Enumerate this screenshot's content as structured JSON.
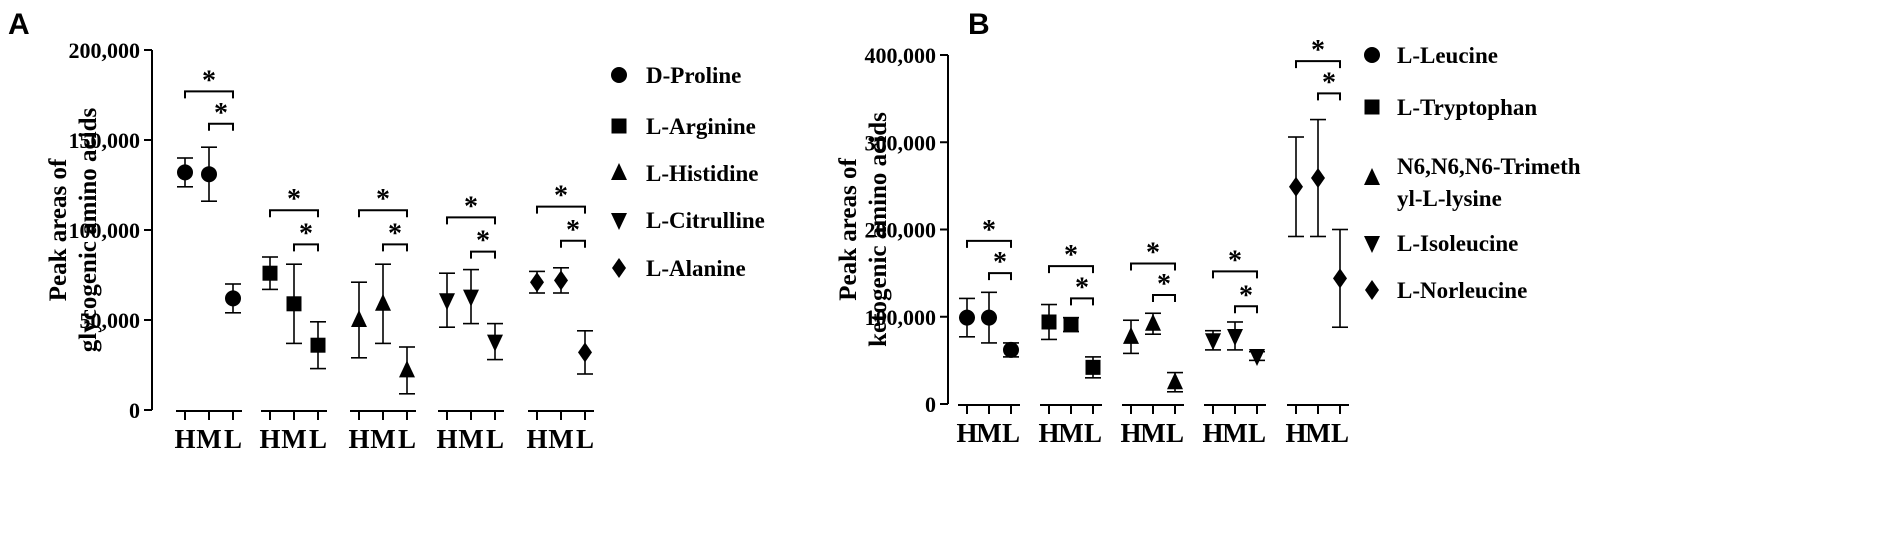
{
  "chart_data": [
    {
      "panel": "A",
      "type": "scatter",
      "ylabel": [
        "Peak areas of",
        "glycogenic amino acids"
      ],
      "yticks": [
        "0",
        "50,000",
        "100,000",
        "150,000",
        "200,000"
      ],
      "ylim": [
        0,
        200000
      ],
      "group_labels": [
        "H",
        "M",
        "L"
      ],
      "series": [
        {
          "name": "D-Proline",
          "marker": "circle",
          "mean": [
            132000,
            131000,
            62000
          ],
          "err": [
            8000,
            15000,
            8000
          ]
        },
        {
          "name": "L-Arginine",
          "marker": "square",
          "mean": [
            76000,
            59000,
            36000
          ],
          "err": [
            9000,
            22000,
            13000
          ]
        },
        {
          "name": "L-Histidine",
          "marker": "triangle",
          "mean": [
            50000,
            59000,
            22000
          ],
          "err": [
            21000,
            22000,
            13000
          ]
        },
        {
          "name": "L-Citrulline",
          "marker": "triangle-down",
          "mean": [
            61000,
            63000,
            38000
          ],
          "err": [
            15000,
            15000,
            10000
          ]
        },
        {
          "name": "L-Alanine",
          "marker": "diamond",
          "mean": [
            71000,
            72000,
            32000
          ],
          "err": [
            6000,
            7000,
            12000
          ]
        }
      ],
      "significance": [
        {
          "outer_y": 177000,
          "inner_y": 159000
        },
        {
          "outer_y": 111000,
          "inner_y": 92000
        },
        {
          "outer_y": 111000,
          "inner_y": 92000
        },
        {
          "outer_y": 107000,
          "inner_y": 88000
        },
        {
          "outer_y": 113000,
          "inner_y": 94000
        }
      ],
      "sig_label": "*"
    },
    {
      "panel": "B",
      "type": "scatter",
      "ylabel": [
        "Peak areas of",
        "ketogenic amino acids"
      ],
      "yticks": [
        "0",
        "100,000",
        "200,000",
        "300,000",
        "400,000"
      ],
      "ylim": [
        0,
        400000
      ],
      "group_labels": [
        "H",
        "M",
        "L"
      ],
      "series": [
        {
          "name": "L-Leucine",
          "marker": "circle",
          "mean": [
            99000,
            99000,
            62000
          ],
          "err": [
            22000,
            29000,
            8000
          ]
        },
        {
          "name": "L-Tryptophan",
          "marker": "square",
          "mean": [
            94000,
            91000,
            42000
          ],
          "err": [
            20000,
            8000,
            12000
          ]
        },
        {
          "name": "N6,N6,N6-Trimethyl-L-lysine",
          "name_lines": [
            "N6,N6,N6-Trimeth",
            "yl-L-lysine"
          ],
          "marker": "triangle",
          "mean": [
            77000,
            92000,
            25000
          ],
          "err": [
            19000,
            12000,
            11000
          ]
        },
        {
          "name": "L-Isoleucine",
          "marker": "triangle-down",
          "mean": [
            73000,
            78000,
            55000
          ],
          "err": [
            11000,
            16000,
            5000
          ]
        },
        {
          "name": "L-Norleucine",
          "marker": "diamond",
          "mean": [
            249000,
            259000,
            144000
          ],
          "err": [
            57000,
            67000,
            56000
          ]
        }
      ],
      "significance": [
        {
          "outer_y": 187000,
          "inner_y": 150000
        },
        {
          "outer_y": 158000,
          "inner_y": 121000
        },
        {
          "outer_y": 161000,
          "inner_y": 125000
        },
        {
          "outer_y": 152000,
          "inner_y": 112000
        },
        {
          "outer_y": 393000,
          "inner_y": 356000
        }
      ],
      "sig_label": "*"
    }
  ]
}
